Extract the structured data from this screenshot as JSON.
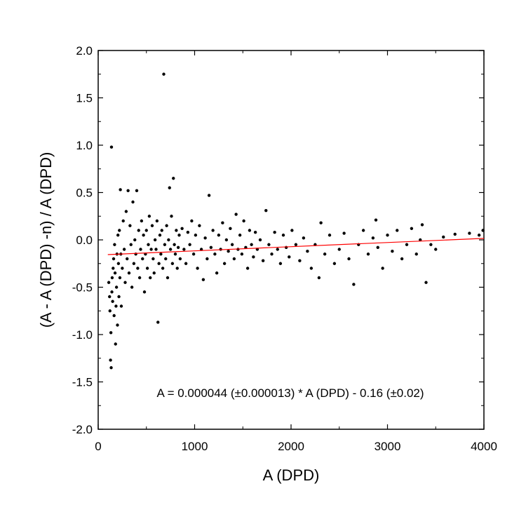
{
  "chart_data": {
    "type": "scatter",
    "title": "",
    "xlabel": "A (DPD)",
    "ylabel": "(A - A (DPD) -n) / A (DPD)",
    "xlim": [
      0,
      4000
    ],
    "ylim": [
      -2.0,
      2.0
    ],
    "x_ticks": [
      0,
      1000,
      2000,
      3000,
      4000
    ],
    "x_tick_labels": [
      "0",
      "1000",
      "2000",
      "3000",
      "4000"
    ],
    "y_ticks": [
      2.0,
      1.5,
      1.0,
      0.5,
      0.0,
      -0.5,
      -1.0,
      -1.5,
      -2.0
    ],
    "y_tick_labels": [
      "2.0",
      "1.5",
      "1.0",
      "0.5",
      "0.0",
      "-0.5",
      "-1.0",
      "-1.5",
      "-2.0"
    ],
    "grid": false,
    "legend": "none",
    "annotation": "A = 0.000044 (±0.000013) * A (DPD) - 0.16 (±0.02)",
    "fit": {
      "slope": 4.4e-05,
      "intercept": -0.16,
      "x_range": [
        100,
        4000
      ],
      "color": "#ff0000"
    },
    "point_color": "#000000",
    "points": [
      [
        110,
        -0.45
      ],
      [
        118,
        -0.6
      ],
      [
        122,
        -0.75
      ],
      [
        128,
        -1.27
      ],
      [
        132,
        -0.98
      ],
      [
        135,
        -1.35
      ],
      [
        138,
        0.98
      ],
      [
        142,
        -0.55
      ],
      [
        145,
        -0.4
      ],
      [
        150,
        -0.65
      ],
      [
        155,
        -0.3
      ],
      [
        160,
        -0.2
      ],
      [
        165,
        -0.8
      ],
      [
        170,
        -0.05
      ],
      [
        175,
        -0.35
      ],
      [
        180,
        -1.1
      ],
      [
        185,
        -0.7
      ],
      [
        190,
        -0.5
      ],
      [
        195,
        -0.15
      ],
      [
        200,
        -0.9
      ],
      [
        205,
        0.05
      ],
      [
        210,
        -0.25
      ],
      [
        215,
        -0.6
      ],
      [
        220,
        0.1
      ],
      [
        225,
        -0.4
      ],
      [
        230,
        0.53
      ],
      [
        235,
        -0.15
      ],
      [
        240,
        -0.7
      ],
      [
        250,
        -0.3
      ],
      [
        260,
        0.2
      ],
      [
        270,
        -0.1
      ],
      [
        280,
        -0.45
      ],
      [
        290,
        0.3
      ],
      [
        300,
        -0.2
      ],
      [
        310,
        0.52
      ],
      [
        320,
        -0.35
      ],
      [
        330,
        0.15
      ],
      [
        340,
        -0.05
      ],
      [
        350,
        -0.5
      ],
      [
        360,
        0.4
      ],
      [
        370,
        -0.25
      ],
      [
        380,
        0.0
      ],
      [
        390,
        -0.15
      ],
      [
        400,
        0.52
      ],
      [
        410,
        -0.3
      ],
      [
        420,
        0.1
      ],
      [
        430,
        -0.4
      ],
      [
        440,
        -0.1
      ],
      [
        450,
        0.2
      ],
      [
        460,
        -0.2
      ],
      [
        470,
        0.05
      ],
      [
        480,
        -0.55
      ],
      [
        490,
        -0.15
      ],
      [
        500,
        0.1
      ],
      [
        510,
        -0.3
      ],
      [
        520,
        -0.05
      ],
      [
        530,
        0.25
      ],
      [
        540,
        -0.4
      ],
      [
        550,
        -0.1
      ],
      [
        560,
        0.15
      ],
      [
        570,
        -0.2
      ],
      [
        580,
        -0.35
      ],
      [
        590,
        0.0
      ],
      [
        600,
        -0.1
      ],
      [
        610,
        0.2
      ],
      [
        620,
        -0.87
      ],
      [
        630,
        -0.25
      ],
      [
        640,
        0.05
      ],
      [
        650,
        -0.15
      ],
      [
        660,
        0.1
      ],
      [
        670,
        -0.3
      ],
      [
        680,
        1.75
      ],
      [
        690,
        -0.05
      ],
      [
        700,
        -0.2
      ],
      [
        710,
        0.15
      ],
      [
        720,
        -0.4
      ],
      [
        730,
        0.0
      ],
      [
        740,
        0.55
      ],
      [
        750,
        -0.1
      ],
      [
        760,
        0.25
      ],
      [
        770,
        -0.25
      ],
      [
        780,
        0.65
      ],
      [
        790,
        -0.05
      ],
      [
        800,
        -0.15
      ],
      [
        810,
        0.1
      ],
      [
        820,
        -0.3
      ],
      [
        830,
        -0.08
      ],
      [
        840,
        0.05
      ],
      [
        850,
        -0.2
      ],
      [
        870,
        0.12
      ],
      [
        890,
        -0.1
      ],
      [
        910,
        -0.25
      ],
      [
        930,
        0.08
      ],
      [
        950,
        -0.05
      ],
      [
        970,
        0.2
      ],
      [
        990,
        -0.15
      ],
      [
        1010,
        0.05
      ],
      [
        1030,
        -0.3
      ],
      [
        1050,
        0.15
      ],
      [
        1070,
        -0.1
      ],
      [
        1090,
        -0.42
      ],
      [
        1110,
        0.02
      ],
      [
        1130,
        -0.2
      ],
      [
        1150,
        0.47
      ],
      [
        1170,
        -0.08
      ],
      [
        1190,
        0.1
      ],
      [
        1210,
        -0.15
      ],
      [
        1230,
        -0.35
      ],
      [
        1250,
        0.05
      ],
      [
        1270,
        -0.1
      ],
      [
        1290,
        0.18
      ],
      [
        1310,
        -0.25
      ],
      [
        1330,
        0.0
      ],
      [
        1350,
        -0.12
      ],
      [
        1370,
        0.12
      ],
      [
        1390,
        -0.05
      ],
      [
        1410,
        -0.2
      ],
      [
        1430,
        0.27
      ],
      [
        1450,
        -0.1
      ],
      [
        1470,
        0.05
      ],
      [
        1490,
        -0.15
      ],
      [
        1510,
        0.2
      ],
      [
        1530,
        -0.08
      ],
      [
        1550,
        -0.3
      ],
      [
        1570,
        0.1
      ],
      [
        1590,
        -0.05
      ],
      [
        1610,
        -0.18
      ],
      [
        1630,
        0.08
      ],
      [
        1650,
        -0.1
      ],
      [
        1680,
        0.0
      ],
      [
        1710,
        -0.22
      ],
      [
        1740,
        0.31
      ],
      [
        1770,
        -0.05
      ],
      [
        1800,
        -0.15
      ],
      [
        1830,
        0.08
      ],
      [
        1860,
        -0.1
      ],
      [
        1890,
        -0.25
      ],
      [
        1920,
        0.05
      ],
      [
        1950,
        -0.08
      ],
      [
        1980,
        -0.18
      ],
      [
        2010,
        0.1
      ],
      [
        2050,
        -0.05
      ],
      [
        2090,
        -0.22
      ],
      [
        2130,
        0.02
      ],
      [
        2170,
        -0.12
      ],
      [
        2210,
        -0.3
      ],
      [
        2250,
        -0.05
      ],
      [
        2290,
        -0.4
      ],
      [
        2310,
        0.18
      ],
      [
        2350,
        -0.15
      ],
      [
        2400,
        0.05
      ],
      [
        2450,
        -0.25
      ],
      [
        2500,
        -0.1
      ],
      [
        2550,
        0.07
      ],
      [
        2600,
        -0.2
      ],
      [
        2650,
        -0.47
      ],
      [
        2700,
        -0.05
      ],
      [
        2750,
        0.1
      ],
      [
        2800,
        -0.15
      ],
      [
        2850,
        0.02
      ],
      [
        2880,
        0.21
      ],
      [
        2900,
        -0.08
      ],
      [
        2950,
        -0.3
      ],
      [
        3000,
        0.05
      ],
      [
        3050,
        -0.12
      ],
      [
        3100,
        0.1
      ],
      [
        3150,
        -0.2
      ],
      [
        3200,
        -0.05
      ],
      [
        3250,
        0.12
      ],
      [
        3300,
        -0.15
      ],
      [
        3340,
        0.0
      ],
      [
        3360,
        0.16
      ],
      [
        3400,
        -0.45
      ],
      [
        3450,
        -0.05
      ],
      [
        3500,
        -0.1
      ],
      [
        3580,
        0.03
      ],
      [
        3700,
        0.06
      ],
      [
        3850,
        0.07
      ],
      [
        3950,
        0.05
      ],
      [
        3990,
        0.1
      ]
    ]
  }
}
